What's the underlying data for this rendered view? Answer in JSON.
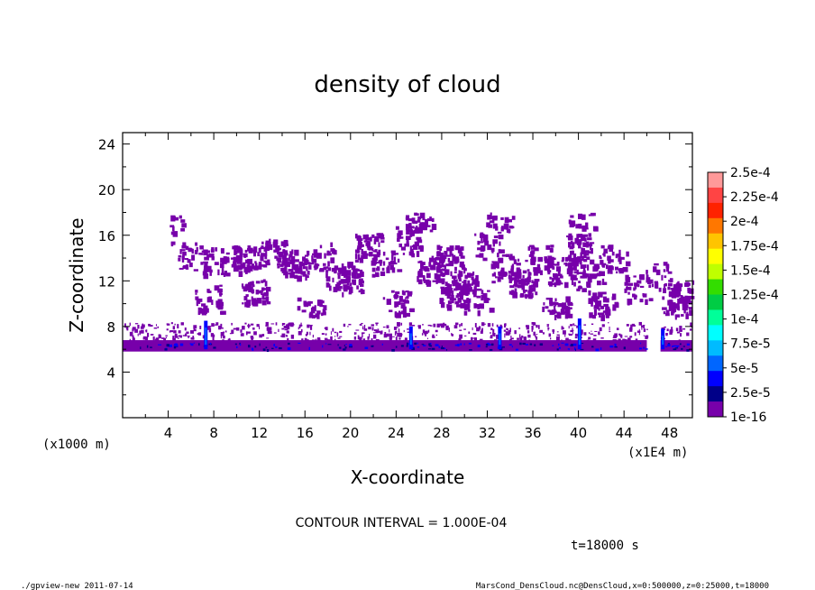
{
  "chart_data": {
    "type": "heatmap",
    "title": "density of cloud",
    "xlabel": "X-coordinate",
    "ylabel": "Z-coordinate",
    "x_unit": "(x1E4 m)",
    "y_unit": "(x1000 m)",
    "xlim": [
      0,
      50
    ],
    "ylim": [
      0,
      25
    ],
    "x_ticks": [
      4,
      8,
      12,
      16,
      20,
      24,
      28,
      32,
      36,
      40,
      44,
      48
    ],
    "y_ticks": [
      4,
      8,
      12,
      16,
      20,
      24
    ],
    "colorbar": {
      "labels": [
        "2.5e-4",
        "2.25e-4",
        "2e-4",
        "1.75e-4",
        "1.5e-4",
        "1.25e-4",
        "1e-4",
        "7.5e-5",
        "5e-5",
        "2.5e-5",
        "1e-16"
      ],
      "colors": [
        "#ff9999",
        "#ff4444",
        "#ff2200",
        "#ff7700",
        "#ffc400",
        "#ffff00",
        "#bfff00",
        "#33dd00",
        "#00cc44",
        "#00ff99",
        "#00ffff",
        "#00bbff",
        "#0066ff",
        "#0000ff",
        "#000088",
        "#7700aa"
      ]
    },
    "regions": [
      {
        "desc": "dense low cloud layer",
        "x": [
          0,
          50
        ],
        "z": [
          5.8,
          6.8
        ],
        "level": "1e-16"
      },
      {
        "desc": "upper scattered cloud",
        "x": [
          4,
          50
        ],
        "z": [
          9,
          18
        ],
        "level": "1e-16"
      },
      {
        "desc": "local maxima",
        "x": [
          7.3,
          25.3,
          33.1,
          40.1,
          47.4
        ],
        "z": [
          8.5,
          8.0,
          8.0,
          8.7,
          7.8
        ],
        "level": "5e-5"
      }
    ],
    "contour_interval": "CONTOUR INTERVAL = 1.000E-04",
    "time_label": "t=18000 s"
  },
  "footer": {
    "left": "./gpview-new  2011-07-14",
    "right": "MarsCond_DensCloud.nc@DensCloud,x=0:500000,z=0:25000,t=18000"
  }
}
